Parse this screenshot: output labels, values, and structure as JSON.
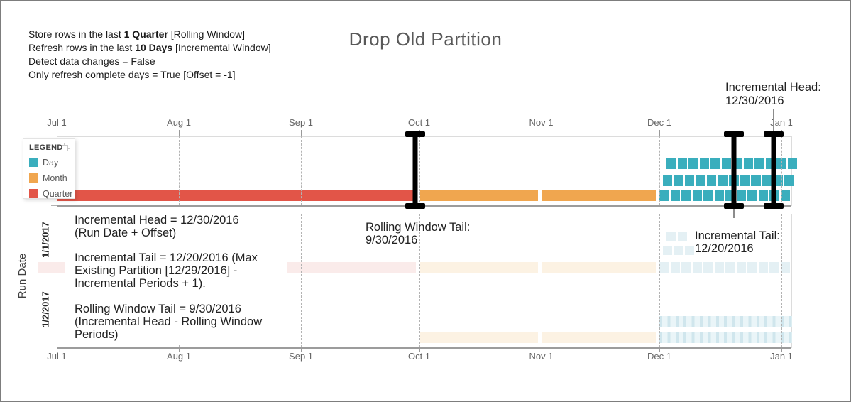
{
  "title": "Drop Old Partition",
  "config": {
    "lines": [
      {
        "runs": [
          {
            "t": "Store rows in the last "
          },
          {
            "t": "1 Quarter",
            "b": true
          },
          {
            "t": " [Rolling Window]"
          }
        ]
      },
      {
        "runs": [
          {
            "t": "Refresh rows in the last "
          },
          {
            "t": "10 Days",
            "b": true
          },
          {
            "t": " [Incremental Window]"
          }
        ]
      },
      {
        "runs": [
          {
            "t": "Detect data changes = False"
          }
        ]
      },
      {
        "runs": [
          {
            "t": "Only refresh complete days = True [Offset = -1]"
          }
        ]
      }
    ]
  },
  "annotations": {
    "head_label": {
      "line1": "Incremental Head:",
      "line2": "12/30/2016"
    },
    "left": [
      {
        "lines": [
          "Incremental Head = 12/30/2016",
          "(Run Date + Offset)"
        ]
      },
      {
        "lines": [
          "Incremental Tail = 12/20/2016 (Max",
          "Existing Partition [12/29/2016] -",
          "Incremental Periods + 1)."
        ]
      },
      {
        "lines": [
          "Rolling Window Tail = 9/30/2016",
          "(Incremental Head - Rolling Window",
          "Periods)"
        ]
      }
    ],
    "rolling_tail": {
      "lines": [
        "Rolling Window Tail:",
        "9/30/2016"
      ]
    },
    "inc_tail": {
      "lines": [
        "Incremental Tail:",
        "12/20/2016"
      ]
    }
  },
  "chart_data": {
    "type": "timeline-partition",
    "title": "Drop Old Partition",
    "x_axis": {
      "left_date": "2016-07-01",
      "right_date": "2017-01-01",
      "ticks": [
        {
          "label": "Jul 1",
          "date": "2016-07-01"
        },
        {
          "label": "Aug 1",
          "date": "2016-08-01"
        },
        {
          "label": "Sep 1",
          "date": "2016-09-01"
        },
        {
          "label": "Oct 1",
          "date": "2016-10-01"
        },
        {
          "label": "Nov 1",
          "date": "2016-11-01"
        },
        {
          "label": "Dec 1",
          "date": "2016-12-01"
        },
        {
          "label": "Jan 1",
          "date": "2017-01-01"
        }
      ]
    },
    "y_axis": {
      "title": "Run Date",
      "categories": [
        "1/1/2017",
        "1/2/2017"
      ]
    },
    "legend": {
      "title": "LEGEND",
      "items": [
        {
          "label": "Day",
          "color": "#3aaebd"
        },
        {
          "label": "Month",
          "color": "#f0a64f"
        },
        {
          "label": "Quarter",
          "color": "#e25548"
        }
      ]
    },
    "colors": {
      "day": "#3aaebd",
      "month": "#f0a64f",
      "quarter": "#e25548",
      "day_faded": "#e4f0f4",
      "day_faded_stripe": "#d0e6ed",
      "month_faded": "#fcf2e3",
      "quarter_faded": "#faebea"
    },
    "timeline": {
      "segments": [
        {
          "kind": "quarter",
          "start": "2016-07-01",
          "end": "2016-10-01"
        },
        {
          "kind": "month",
          "start": "2016-10-01",
          "end": "2016-11-01"
        },
        {
          "kind": "month",
          "start": "2016-11-01",
          "end": "2016-12-01"
        },
        {
          "kind": "days",
          "start": "2016-12-01",
          "end": "2017-01-02",
          "square_count": 12,
          "stacked_counts": [
            12,
            12,
            12
          ]
        }
      ],
      "markers": [
        {
          "label": "Rolling Window Tail",
          "date": "2016-09-30",
          "connector": "none"
        },
        {
          "label": "Incremental Tail",
          "date": "2016-12-20",
          "connector": "below"
        },
        {
          "label": "Incremental Head",
          "date": "2016-12-30",
          "connector": "above"
        }
      ]
    },
    "run_rows": [
      {
        "category": "1/1/2017",
        "segments": [
          {
            "kind": "quarter",
            "faded": true,
            "start": "2016-07-01",
            "end": "2016-10-01"
          },
          {
            "kind": "month",
            "faded": true,
            "start": "2016-10-01",
            "end": "2016-11-01"
          },
          {
            "kind": "month",
            "faded": true,
            "start": "2016-11-01",
            "end": "2016-12-01"
          },
          {
            "kind": "days",
            "faded": true,
            "start": "2016-12-01",
            "end": "2017-01-02",
            "square_count": 12,
            "stacked_counts": [
              12,
              3,
              2
            ]
          }
        ]
      },
      {
        "category": "1/2/2017",
        "segments": [
          {
            "kind": "month",
            "faded": true,
            "start": "2016-10-01",
            "end": "2016-11-01"
          },
          {
            "kind": "month",
            "faded": true,
            "start": "2016-11-01",
            "end": "2016-12-01"
          },
          {
            "kind": "days",
            "faded": true,
            "striped": true,
            "start": "2016-12-01",
            "end": "2017-01-02",
            "stacked_rows": 2
          }
        ]
      }
    ]
  }
}
